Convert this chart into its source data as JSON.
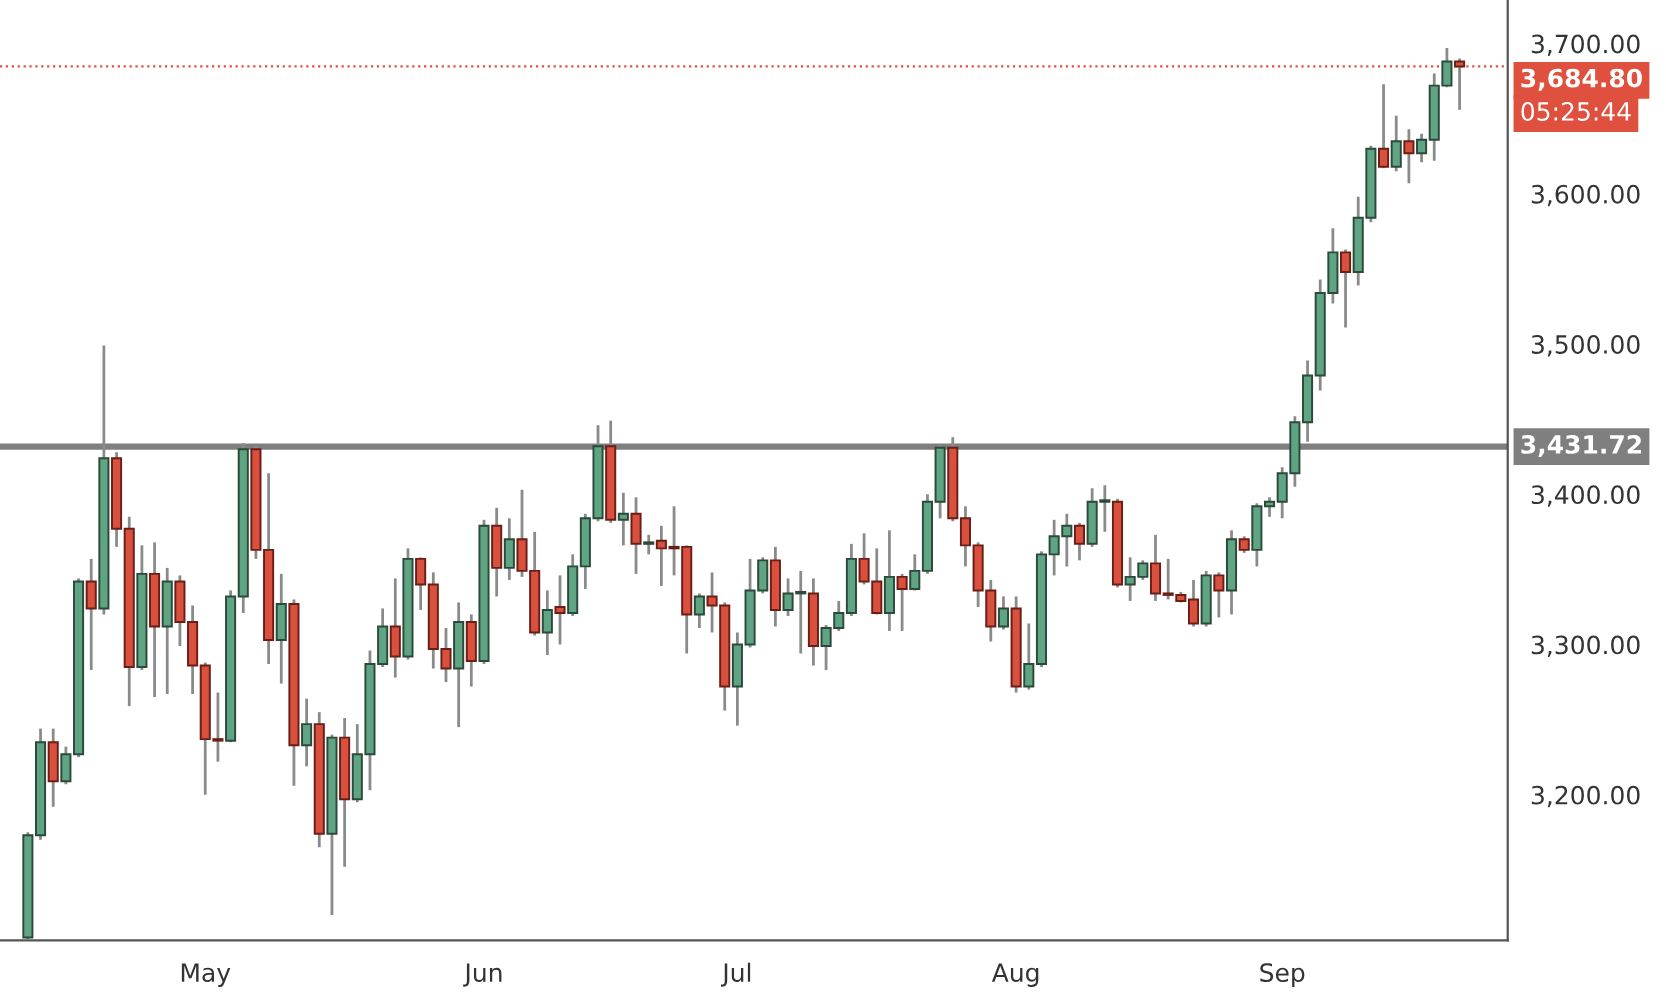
{
  "chart_data": {
    "type": "candlestick",
    "categories": [
      null,
      null,
      null,
      null,
      null,
      null,
      null,
      null,
      null,
      null,
      null,
      null,
      null,
      null,
      "May",
      null,
      null,
      null,
      null,
      null,
      null,
      null,
      null,
      null,
      null,
      null,
      null,
      null,
      null,
      null,
      null,
      null,
      null,
      null,
      null,
      null,
      "Jun",
      null,
      null,
      null,
      null,
      null,
      null,
      null,
      null,
      null,
      null,
      null,
      null,
      null,
      null,
      null,
      null,
      null,
      null,
      null,
      "Jul",
      null,
      null,
      null,
      null,
      null,
      null,
      null,
      null,
      null,
      null,
      null,
      null,
      null,
      null,
      null,
      null,
      null,
      null,
      null,
      null,
      null,
      "Aug",
      null,
      null,
      null,
      null,
      null,
      null,
      null,
      null,
      null,
      null,
      null,
      null,
      null,
      null,
      null,
      null,
      null,
      null,
      null,
      null,
      "Sep",
      null,
      null,
      null,
      null,
      null,
      null,
      null,
      null,
      null,
      null,
      null,
      null,
      null,
      null
    ],
    "ohlc": [
      [
        3105,
        3175,
        3104,
        3173
      ],
      [
        3173,
        3244,
        3170,
        3235
      ],
      [
        3235,
        3244,
        3192,
        3209
      ],
      [
        3209,
        3232,
        3207,
        3227
      ],
      [
        3227,
        3344,
        3225,
        3342
      ],
      [
        3342,
        3357,
        3283,
        3324
      ],
      [
        3324,
        3499,
        3320,
        3424
      ],
      [
        3424,
        3428,
        3365,
        3377
      ],
      [
        3377,
        3385,
        3259,
        3285
      ],
      [
        3285,
        3366,
        3283,
        3347
      ],
      [
        3347,
        3368,
        3265,
        3312
      ],
      [
        3312,
        3351,
        3267,
        3342
      ],
      [
        3342,
        3346,
        3299,
        3315
      ],
      [
        3315,
        3326,
        3267,
        3286
      ],
      [
        3286,
        3288,
        3200,
        3237
      ],
      [
        3237,
        3268,
        3222,
        3236
      ],
      [
        3236,
        3336,
        3235,
        3332
      ],
      [
        3332,
        3434,
        3321,
        3430
      ],
      [
        3430,
        3432,
        3357,
        3363
      ],
      [
        3363,
        3414,
        3287,
        3303
      ],
      [
        3303,
        3347,
        3274,
        3327
      ],
      [
        3327,
        3330,
        3206,
        3233
      ],
      [
        3233,
        3264,
        3219,
        3247
      ],
      [
        3247,
        3255,
        3165,
        3174
      ],
      [
        3174,
        3240,
        3120,
        3238
      ],
      [
        3238,
        3251,
        3152,
        3197
      ],
      [
        3197,
        3247,
        3195,
        3227
      ],
      [
        3227,
        3296,
        3203,
        3287
      ],
      [
        3287,
        3324,
        3285,
        3312
      ],
      [
        3312,
        3344,
        3278,
        3292
      ],
      [
        3292,
        3364,
        3290,
        3357
      ],
      [
        3357,
        3358,
        3323,
        3340
      ],
      [
        3340,
        3348,
        3284,
        3297
      ],
      [
        3297,
        3311,
        3275,
        3284
      ],
      [
        3284,
        3328,
        3245,
        3315
      ],
      [
        3315,
        3320,
        3272,
        3289
      ],
      [
        3289,
        3383,
        3287,
        3379
      ],
      [
        3379,
        3391,
        3332,
        3351
      ],
      [
        3351,
        3384,
        3343,
        3370
      ],
      [
        3370,
        3403,
        3345,
        3349
      ],
      [
        3349,
        3375,
        3306,
        3308
      ],
      [
        3308,
        3336,
        3293,
        3323
      ],
      [
        3325,
        3346,
        3300,
        3321
      ],
      [
        3321,
        3360,
        3319,
        3352
      ],
      [
        3352,
        3387,
        3337,
        3384
      ],
      [
        3384,
        3446,
        3382,
        3432
      ],
      [
        3432,
        3449,
        3381,
        3383
      ],
      [
        3383,
        3401,
        3366,
        3387
      ],
      [
        3387,
        3398,
        3347,
        3367
      ],
      [
        3367,
        3373,
        3360,
        3368
      ],
      [
        3369,
        3379,
        3339,
        3364
      ],
      [
        3365,
        3392,
        3346,
        3364
      ],
      [
        3365,
        3366,
        3294,
        3320
      ],
      [
        3320,
        3334,
        3311,
        3332
      ],
      [
        3332,
        3348,
        3308,
        3326
      ],
      [
        3326,
        3328,
        3256,
        3272
      ],
      [
        3272,
        3308,
        3246,
        3300
      ],
      [
        3300,
        3357,
        3298,
        3336
      ],
      [
        3336,
        3358,
        3334,
        3356
      ],
      [
        3356,
        3365,
        3312,
        3323
      ],
      [
        3323,
        3344,
        3319,
        3334
      ],
      [
        3334,
        3349,
        3294,
        3335
      ],
      [
        3334,
        3344,
        3286,
        3299
      ],
      [
        3299,
        3313,
        3283,
        3311
      ],
      [
        3311,
        3329,
        3309,
        3321
      ],
      [
        3321,
        3367,
        3319,
        3357
      ],
      [
        3357,
        3374,
        3340,
        3342
      ],
      [
        3342,
        3364,
        3320,
        3321
      ],
      [
        3321,
        3376,
        3309,
        3345
      ],
      [
        3345,
        3347,
        3309,
        3337
      ],
      [
        3337,
        3360,
        3336,
        3349
      ],
      [
        3349,
        3400,
        3347,
        3395
      ],
      [
        3395,
        3433,
        3384,
        3431
      ],
      [
        3431,
        3438,
        3382,
        3384
      ],
      [
        3384,
        3392,
        3352,
        3366
      ],
      [
        3366,
        3368,
        3325,
        3336
      ],
      [
        3336,
        3343,
        3302,
        3312
      ],
      [
        3312,
        3332,
        3310,
        3324
      ],
      [
        3324,
        3332,
        3268,
        3272
      ],
      [
        3272,
        3314,
        3270,
        3287
      ],
      [
        3287,
        3362,
        3285,
        3360
      ],
      [
        3360,
        3383,
        3346,
        3372
      ],
      [
        3372,
        3387,
        3352,
        3379
      ],
      [
        3379,
        3381,
        3356,
        3367
      ],
      [
        3367,
        3404,
        3365,
        3395
      ],
      [
        3395,
        3406,
        3375,
        3396
      ],
      [
        3395,
        3397,
        3338,
        3340
      ],
      [
        3340,
        3358,
        3329,
        3345
      ],
      [
        3345,
        3356,
        3343,
        3354
      ],
      [
        3354,
        3373,
        3329,
        3334
      ],
      [
        3334,
        3357,
        3330,
        3333
      ],
      [
        3333,
        3335,
        3328,
        3329
      ],
      [
        3330,
        3343,
        3312,
        3314
      ],
      [
        3314,
        3349,
        3312,
        3346
      ],
      [
        3346,
        3348,
        3318,
        3336
      ],
      [
        3336,
        3376,
        3320,
        3370
      ],
      [
        3370,
        3372,
        3361,
        3363
      ],
      [
        3363,
        3394,
        3352,
        3392
      ],
      [
        3392,
        3398,
        3385,
        3395
      ],
      [
        3395,
        3418,
        3384,
        3414
      ],
      [
        3414,
        3452,
        3405,
        3448
      ],
      [
        3448,
        3489,
        3435,
        3479
      ],
      [
        3479,
        3543,
        3469,
        3534
      ],
      [
        3534,
        3577,
        3527,
        3561
      ],
      [
        3561,
        3563,
        3511,
        3548
      ],
      [
        3548,
        3598,
        3539,
        3584
      ],
      [
        3584,
        3632,
        3581,
        3630
      ],
      [
        3630,
        3673,
        3617,
        3618
      ],
      [
        3618,
        3652,
        3615,
        3635
      ],
      [
        3635,
        3643,
        3607,
        3627
      ],
      [
        3627,
        3640,
        3621,
        3636
      ],
      [
        3636,
        3680,
        3622,
        3672
      ],
      [
        3672,
        3697,
        3671,
        3688
      ],
      [
        3688,
        3690,
        3656,
        3684.8
      ]
    ],
    "ylim": [
      3103,
      3729
    ],
    "yticks": [
      {
        "value": 3200,
        "label": "3,200.00"
      },
      {
        "value": 3300,
        "label": "3,300.00"
      },
      {
        "value": 3400,
        "label": "3,400.00"
      },
      {
        "value": 3500,
        "label": "3,500.00"
      },
      {
        "value": 3600,
        "label": "3,600.00"
      },
      {
        "value": 3700,
        "label": "3,700.00"
      }
    ],
    "ref_lines": [
      {
        "axis": "y",
        "value": 3431.72,
        "label": "3,431.72",
        "color": "#7f7f7f",
        "line_style": "solid"
      },
      {
        "axis": "y",
        "value": 3684.8,
        "label": "3,684.80",
        "color": "#e0503e",
        "line_style": "dotted"
      }
    ],
    "annotations": [
      "05:25:44"
    ],
    "grid": false,
    "legend": false
  }
}
